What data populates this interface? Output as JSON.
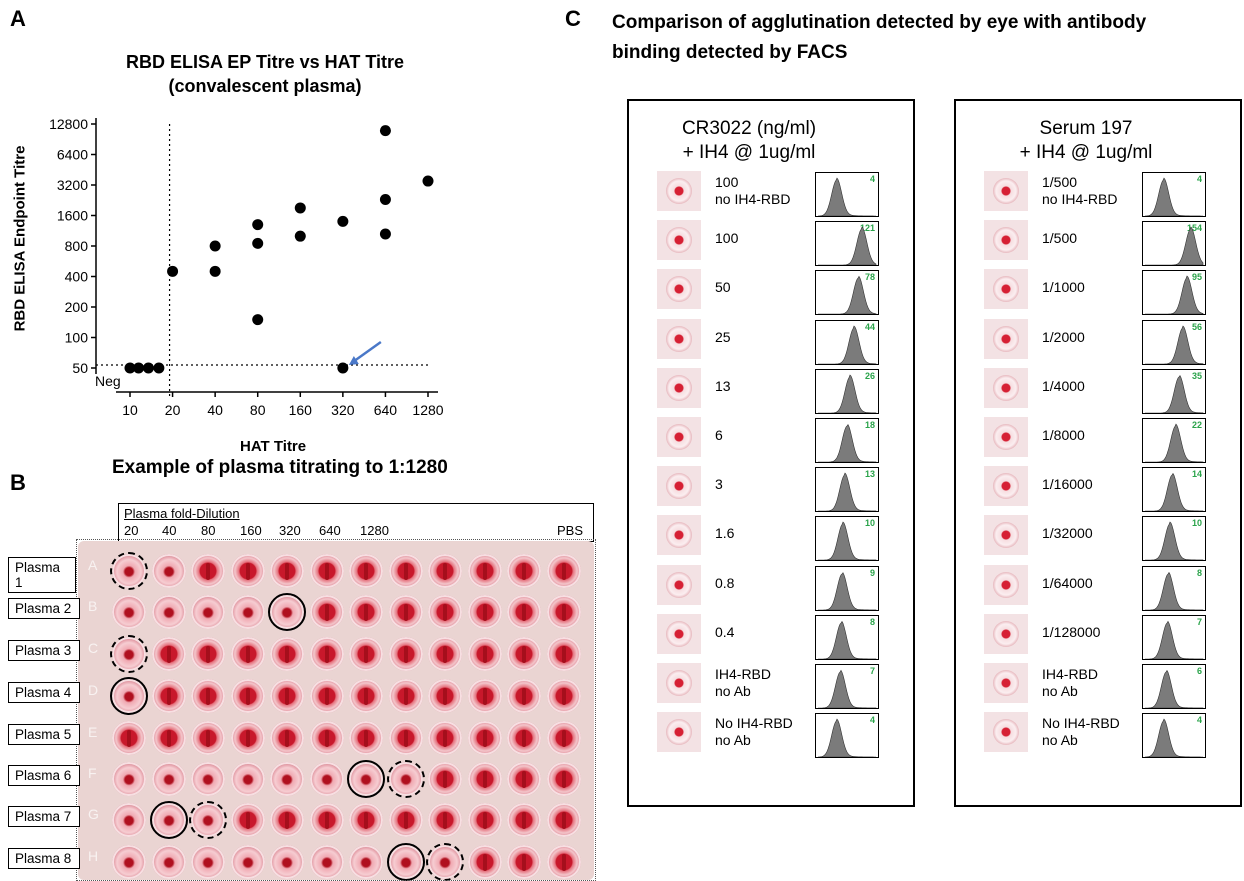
{
  "panels": {
    "a": "A",
    "b": "B",
    "c": "C"
  },
  "panel_a": {
    "title_line1": "RBD ELISA EP Titre vs HAT Titre",
    "title_line2": "(convalescent plasma)",
    "neg_label": "Neg"
  },
  "chart_data": {
    "type": "scatter",
    "xlabel": "HAT Titre",
    "ylabel": "RBD ELISA Endpoint Titre",
    "x_ticks": [
      "10",
      "20",
      "40",
      "80",
      "160",
      "320",
      "640",
      "1280"
    ],
    "y_ticks": [
      "50",
      "100",
      "200",
      "400",
      "800",
      "1600",
      "3200",
      "6400",
      "12800"
    ],
    "x_scale": "log2",
    "y_scale": "log2",
    "xlim": [
      10,
      1280
    ],
    "ylim": [
      50,
      12800
    ],
    "threshold_x": 20,
    "threshold_y": 50,
    "points": [
      {
        "x": 10,
        "y": 50
      },
      {
        "x": 11.5,
        "y": 50
      },
      {
        "x": 13.5,
        "y": 50
      },
      {
        "x": 16,
        "y": 50
      },
      {
        "x": 20,
        "y": 450
      },
      {
        "x": 40,
        "y": 800
      },
      {
        "x": 40,
        "y": 450
      },
      {
        "x": 80,
        "y": 1300
      },
      {
        "x": 80,
        "y": 850
      },
      {
        "x": 80,
        "y": 150
      },
      {
        "x": 160,
        "y": 1900
      },
      {
        "x": 160,
        "y": 1000
      },
      {
        "x": 320,
        "y": 1400
      },
      {
        "x": 320,
        "y": 50
      },
      {
        "x": 640,
        "y": 11000
      },
      {
        "x": 640,
        "y": 2300
      },
      {
        "x": 640,
        "y": 1050
      },
      {
        "x": 1280,
        "y": 3500
      }
    ],
    "annotation": {
      "type": "arrow",
      "target": {
        "x": 320,
        "y": 50
      },
      "color": "#4a78c8"
    }
  },
  "panel_b": {
    "title": "Example of plasma titrating to 1:1280",
    "dilution_header": "Plasma fold-Dilution",
    "dilutions": [
      "20",
      "40",
      "80",
      "160",
      "320",
      "640",
      "1280"
    ],
    "pbs_label": "PBS",
    "plasma_labels": [
      "Plasma 1",
      "Plasma 2",
      "Plasma 3",
      "Plasma 4",
      "Plasma 5",
      "Plasma 6",
      "Plasma 7",
      "Plasma 8"
    ],
    "row_letters": [
      "A",
      "B",
      "C",
      "D",
      "E",
      "F",
      "G",
      "H"
    ]
  },
  "panel_c": {
    "title_line1": "Comparison of agglutination detected by eye with  antibody",
    "title_line2": "binding detected by FACS",
    "left": {
      "header1": "CR3022 (ng/ml)",
      "header2": "+ IH4 @ 1ug/ml",
      "rows": [
        {
          "l1": "100",
          "l2": "no IH4-RBD",
          "mfi": "4"
        },
        {
          "l1": "100",
          "l2": "",
          "mfi": "121"
        },
        {
          "l1": "50",
          "l2": "",
          "mfi": "78"
        },
        {
          "l1": "25",
          "l2": "",
          "mfi": "44"
        },
        {
          "l1": "13",
          "l2": "",
          "mfi": "26"
        },
        {
          "l1": "6",
          "l2": "",
          "mfi": "18"
        },
        {
          "l1": "3",
          "l2": "",
          "mfi": "13"
        },
        {
          "l1": "1.6",
          "l2": "",
          "mfi": "10"
        },
        {
          "l1": "0.8",
          "l2": "",
          "mfi": "9"
        },
        {
          "l1": "0.4",
          "l2": "",
          "mfi": "8"
        },
        {
          "l1": "IH4-RBD",
          "l2": "no Ab",
          "mfi": "7"
        },
        {
          "l1": "No IH4-RBD",
          "l2": "no Ab",
          "mfi": "4"
        }
      ]
    },
    "right": {
      "header1": "Serum 197",
      "header2": "+ IH4 @ 1ug/ml",
      "rows": [
        {
          "l1": "1/500",
          "l2": "no IH4-RBD",
          "mfi": "4"
        },
        {
          "l1": "1/500",
          "l2": "",
          "mfi": "154"
        },
        {
          "l1": "1/1000",
          "l2": "",
          "mfi": "95"
        },
        {
          "l1": "1/2000",
          "l2": "",
          "mfi": "56"
        },
        {
          "l1": "1/4000",
          "l2": "",
          "mfi": "35"
        },
        {
          "l1": "1/8000",
          "l2": "",
          "mfi": "22"
        },
        {
          "l1": "1/16000",
          "l2": "",
          "mfi": "14"
        },
        {
          "l1": "1/32000",
          "l2": "",
          "mfi": "10"
        },
        {
          "l1": "1/64000",
          "l2": "",
          "mfi": "8"
        },
        {
          "l1": "1/128000",
          "l2": "",
          "mfi": "7"
        },
        {
          "l1": "IH4-RBD",
          "l2": "no Ab",
          "mfi": "6"
        },
        {
          "l1": "No IH4-RBD",
          "l2": "no Ab",
          "mfi": "4"
        }
      ]
    }
  }
}
